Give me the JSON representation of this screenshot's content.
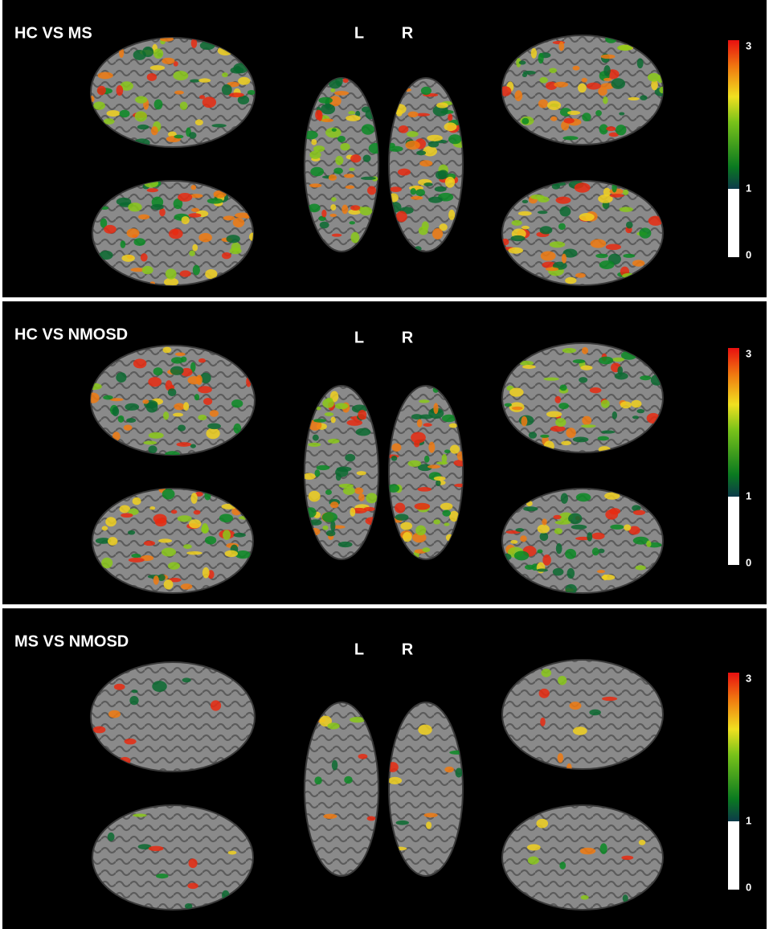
{
  "panels": [
    {
      "title": "HC VS MS",
      "hemisphere_labels": [
        "L",
        "R"
      ],
      "colorbar_labels": [
        3,
        1,
        0
      ]
    },
    {
      "title": "HC VS NMOSD",
      "hemisphere_labels": [
        "L",
        "R"
      ],
      "colorbar_labels": [
        3,
        1,
        0
      ]
    },
    {
      "title": "MS VS NMOSD",
      "hemisphere_labels": [
        "L",
        "R"
      ],
      "colorbar_labels": [
        3,
        1,
        0
      ]
    }
  ]
}
